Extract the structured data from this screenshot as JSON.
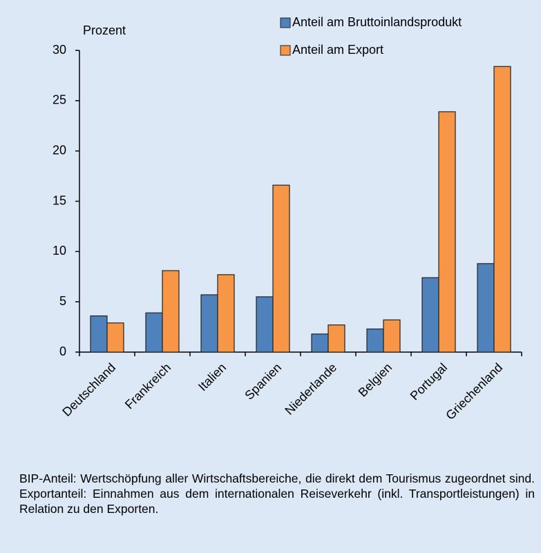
{
  "chart_data": {
    "type": "bar",
    "y_label": "Prozent",
    "categories": [
      "Deutschland",
      "Frankreich",
      "Italien",
      "Spanien",
      "Niederlande",
      "Belgien",
      "Portugal",
      "Griechenland"
    ],
    "series": [
      {
        "name": "Anteil am Bruttoinlandsprodukt",
        "color": "#4f81bd",
        "values": [
          3.6,
          3.9,
          5.7,
          5.5,
          1.8,
          2.3,
          7.4,
          8.8
        ]
      },
      {
        "name": "Anteil am Export",
        "color": "#f79646",
        "values": [
          2.9,
          8.1,
          7.7,
          16.6,
          2.7,
          3.2,
          23.9,
          28.4
        ]
      }
    ],
    "ylim": [
      0,
      30
    ],
    "yticks": [
      0,
      5,
      10,
      15,
      20,
      25,
      30
    ],
    "grid": false,
    "legend": "top-right",
    "footnote": "BIP-Anteil: Wertschöpfung aller Wirtschaftsbereiche, die  direkt dem Tourismus zugeordnet sind. Exportanteil: Einnahmen aus dem internationalen Reiseverkehr (inkl. Transportleistungen) in Relation zu den Exporten."
  }
}
